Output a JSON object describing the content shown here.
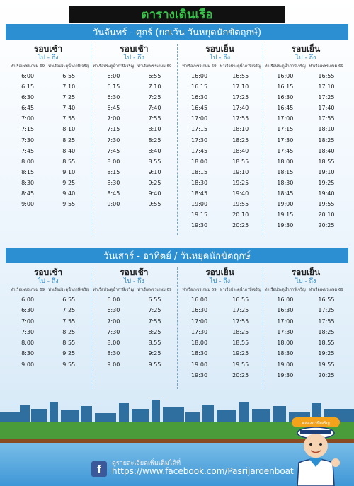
{
  "title": "ตารางเดินเรือ",
  "colors": {
    "section_bar": "#2b8fd1",
    "title_text": "#3ac24a",
    "title_bg": "#111111"
  },
  "weekday": {
    "heading": "วันจันทร์ - ศุกร์ (ยกเว้น วันหยุดนักขัตฤกษ์)",
    "columns": [
      {
        "label": "รอบเช้า",
        "direction": "ไป - ถึง",
        "from": "ท่าเรือเพชรเกษม 69",
        "to": "ท่าเรือประตูน้ำภาษีเจริญ",
        "rows": [
          [
            "6:00",
            "6:55"
          ],
          [
            "6:15",
            "7:10"
          ],
          [
            "6:30",
            "7:25"
          ],
          [
            "6:45",
            "7:40"
          ],
          [
            "7:00",
            "7:55"
          ],
          [
            "7:15",
            "8:10"
          ],
          [
            "7:30",
            "8:25"
          ],
          [
            "7:45",
            "8:40"
          ],
          [
            "8:00",
            "8:55"
          ],
          [
            "8:15",
            "9:10"
          ],
          [
            "8:30",
            "9:25"
          ],
          [
            "8:45",
            "9:40"
          ],
          [
            "9:00",
            "9:55"
          ]
        ]
      },
      {
        "label": "รอบเช้า",
        "direction": "ไป - ถึง",
        "from": "ท่าเรือประตูน้ำภาษีเจริญ",
        "to": "ท่าเรือเพชรเกษม 69",
        "rows": [
          [
            "6:00",
            "6:55"
          ],
          [
            "6:15",
            "7:10"
          ],
          [
            "6:30",
            "7:25"
          ],
          [
            "6:45",
            "7:40"
          ],
          [
            "7:00",
            "7:55"
          ],
          [
            "7:15",
            "8:10"
          ],
          [
            "7:30",
            "8:25"
          ],
          [
            "7:45",
            "8:40"
          ],
          [
            "8:00",
            "8:55"
          ],
          [
            "8:15",
            "9:10"
          ],
          [
            "8:30",
            "9:25"
          ],
          [
            "8:45",
            "9:40"
          ],
          [
            "9:00",
            "9:55"
          ]
        ]
      },
      {
        "label": "รอบเย็น",
        "direction": "ไป - ถึง",
        "from": "ท่าเรือเพชรเกษม 69",
        "to": "ท่าเรือประตูน้ำภาษีเจริญ",
        "rows": [
          [
            "16:00",
            "16:55"
          ],
          [
            "16:15",
            "17:10"
          ],
          [
            "16:30",
            "17:25"
          ],
          [
            "16:45",
            "17:40"
          ],
          [
            "17:00",
            "17:55"
          ],
          [
            "17:15",
            "18:10"
          ],
          [
            "17:30",
            "18:25"
          ],
          [
            "17:45",
            "18:40"
          ],
          [
            "18:00",
            "18:55"
          ],
          [
            "18:15",
            "19:10"
          ],
          [
            "18:30",
            "19:25"
          ],
          [
            "18:45",
            "19:40"
          ],
          [
            "19:00",
            "19:55"
          ],
          [
            "19:15",
            "20:10"
          ],
          [
            "19:30",
            "20:25"
          ]
        ]
      },
      {
        "label": "รอบเย็น",
        "direction": "ไป - ถึง",
        "from": "ท่าเรือประตูน้ำภาษีเจริญ",
        "to": "ท่าเรือเพชรเกษม 69",
        "rows": [
          [
            "16:00",
            "16:55"
          ],
          [
            "16:15",
            "17:10"
          ],
          [
            "16:30",
            "17:25"
          ],
          [
            "16:45",
            "17:40"
          ],
          [
            "17:00",
            "17:55"
          ],
          [
            "17:15",
            "18:10"
          ],
          [
            "17:30",
            "18:25"
          ],
          [
            "17:45",
            "18:40"
          ],
          [
            "18:00",
            "18:55"
          ],
          [
            "18:15",
            "19:10"
          ],
          [
            "18:30",
            "19:25"
          ],
          [
            "18:45",
            "19:40"
          ],
          [
            "19:00",
            "19:55"
          ],
          [
            "19:15",
            "20:10"
          ],
          [
            "19:30",
            "20:25"
          ]
        ]
      }
    ]
  },
  "weekend": {
    "heading": "วันเสาร์ - อาทิตย์ / วันหยุดนักขัตฤกษ์",
    "columns": [
      {
        "label": "รอบเช้า",
        "direction": "ไป - ถึง",
        "from": "ท่าเรือเพชรเกษม 69",
        "to": "ท่าเรือประตูน้ำภาษีเจริญ",
        "rows": [
          [
            "6:00",
            "6:55"
          ],
          [
            "6:30",
            "7:25"
          ],
          [
            "7:00",
            "7:55"
          ],
          [
            "7:30",
            "8:25"
          ],
          [
            "8:00",
            "8:55"
          ],
          [
            "8:30",
            "9:25"
          ],
          [
            "9:00",
            "9:55"
          ]
        ]
      },
      {
        "label": "รอบเช้า",
        "direction": "ไป - ถึง",
        "from": "ท่าเรือประตูน้ำภาษีเจริญ",
        "to": "ท่าเรือเพชรเกษม 69",
        "rows": [
          [
            "6:00",
            "6:55"
          ],
          [
            "6:30",
            "7:25"
          ],
          [
            "7:00",
            "7:55"
          ],
          [
            "7:30",
            "8:25"
          ],
          [
            "8:00",
            "8:55"
          ],
          [
            "8:30",
            "9:25"
          ],
          [
            "9:00",
            "9:55"
          ]
        ]
      },
      {
        "label": "รอบเย็น",
        "direction": "ไป - ถึง",
        "from": "ท่าเรือเพชรเกษม 69",
        "to": "ท่าเรือประตูน้ำภาษีเจริญ",
        "rows": [
          [
            "16:00",
            "16:55"
          ],
          [
            "16:30",
            "17:25"
          ],
          [
            "17:00",
            "17:55"
          ],
          [
            "17:30",
            "18:25"
          ],
          [
            "18:00",
            "18:55"
          ],
          [
            "18:30",
            "19:25"
          ],
          [
            "19:00",
            "19:55"
          ],
          [
            "19:30",
            "20:25"
          ]
        ]
      },
      {
        "label": "รอบเย็น",
        "direction": "ไป - ถึง",
        "from": "ท่าเรือประตูน้ำภาษีเจริญ",
        "to": "ท่าเรือเพชรเกษม 69",
        "rows": [
          [
            "16:00",
            "16:55"
          ],
          [
            "16:30",
            "17:25"
          ],
          [
            "17:00",
            "17:55"
          ],
          [
            "17:30",
            "18:25"
          ],
          [
            "18:00",
            "18:55"
          ],
          [
            "18:30",
            "19:25"
          ],
          [
            "19:00",
            "19:55"
          ],
          [
            "19:30",
            "20:25"
          ]
        ]
      }
    ]
  },
  "footer": {
    "note": "ดูรายละเอียดเพิ่มเติมได้ที่",
    "url": "https://www.facebook.com/Pasrijaroenboat",
    "icon": "facebook-icon",
    "mascot_badge": "คลองภาษีเจริญ"
  }
}
